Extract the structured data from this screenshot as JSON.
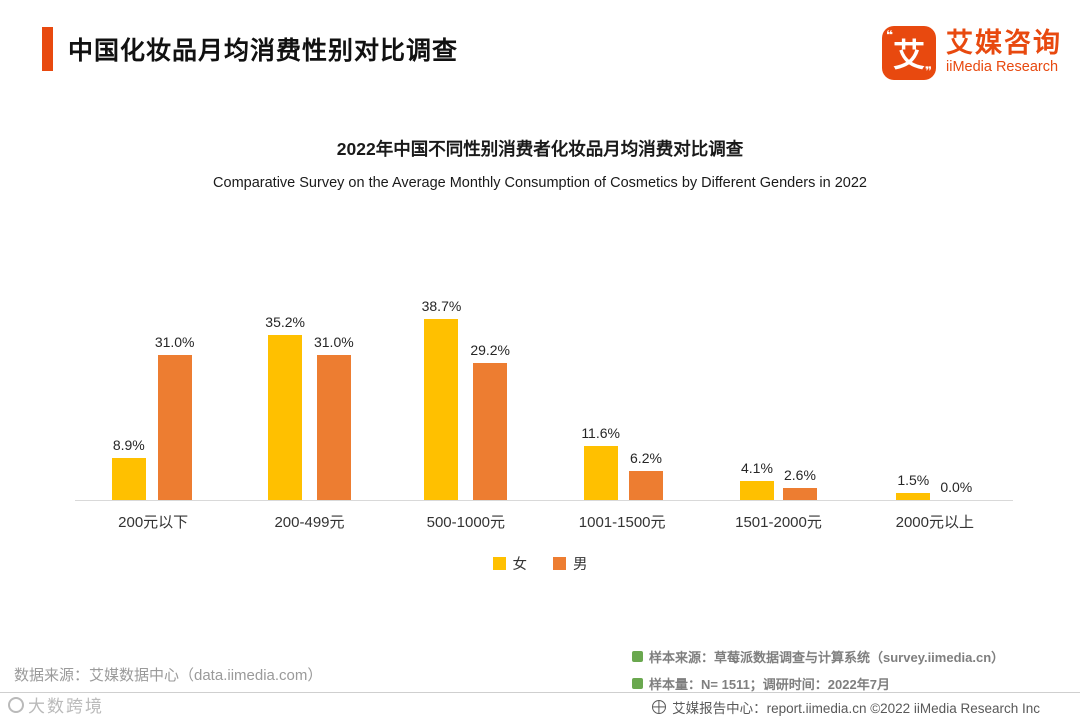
{
  "page": {
    "title": "中国化妆品月均消费性别对比调查",
    "logo": {
      "glyph": "艾",
      "name_cn": "艾媒咨询",
      "name_en": "iiMedia Research"
    }
  },
  "chart_data": {
    "type": "bar",
    "title": "2022年中国不同性别消费者化妆品月均消费对比调查",
    "subtitle": "Comparative Survey on the Average Monthly Consumption of Cosmetics by Different Genders in 2022",
    "categories": [
      "200元以下",
      "200-499元",
      "500-1000元",
      "1001-1500元",
      "1501-2000元",
      "2000元以上"
    ],
    "series": [
      {
        "name": "女",
        "color": "#FFC000",
        "values": [
          8.9,
          35.2,
          38.7,
          11.6,
          4.1,
          1.5
        ]
      },
      {
        "name": "男",
        "color": "#ED7D31",
        "values": [
          31.0,
          31.0,
          29.2,
          6.2,
          2.6,
          0.0
        ]
      }
    ],
    "value_suffix": "%",
    "ylim": [
      0,
      44
    ],
    "grid": false,
    "legend_position": "bottom"
  },
  "footnotes": {
    "source_left": "数据来源：艾媒数据中心（data.iimedia.com）",
    "right_line1": "样本来源：草莓派数据调查与计算系统（survey.iimedia.cn）",
    "right_line2": "样本量：N= 1511；调研时间：2022年7月"
  },
  "footer": {
    "text": "艾媒报告中心：report.iimedia.cn  ©2022  iiMedia Research Inc"
  },
  "watermark": "大数跨境"
}
